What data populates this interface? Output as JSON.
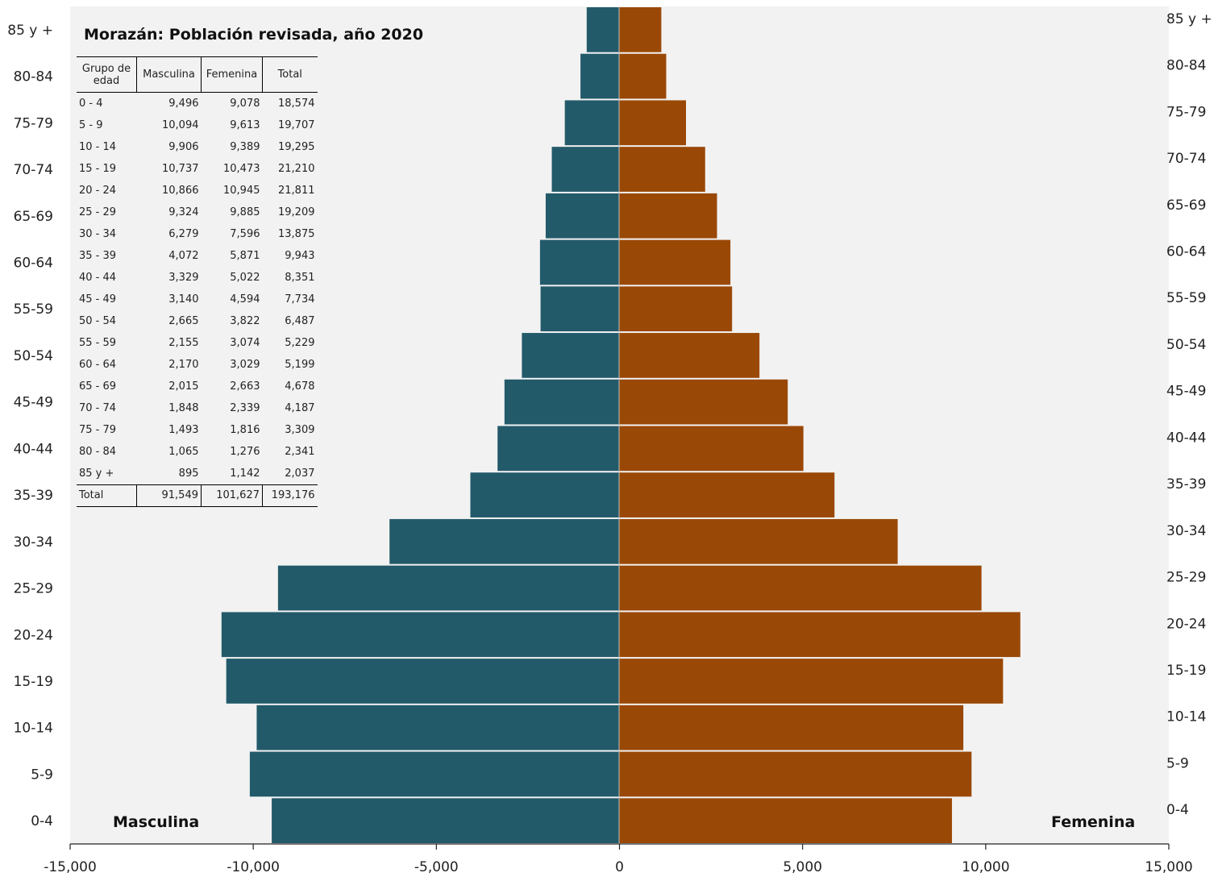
{
  "chart_data": {
    "type": "bar",
    "orientation": "horizontal-pyramid",
    "title": "Morazán: Población revisada, año 2020",
    "categories": [
      "0-4",
      "5-9",
      "10-14",
      "15-19",
      "20-24",
      "25-29",
      "30-34",
      "35-39",
      "40-44",
      "45-49",
      "50-54",
      "55-59",
      "60-64",
      "65-69",
      "70-74",
      "75-79",
      "80-84",
      "85 y +"
    ],
    "series": [
      {
        "name": "Masculina",
        "color": "#235a6a",
        "values": [
          -9496,
          -10094,
          -9906,
          -10737,
          -10866,
          -9324,
          -6279,
          -4072,
          -3329,
          -3140,
          -2665,
          -2155,
          -2170,
          -2015,
          -1848,
          -1493,
          -1065,
          -895
        ]
      },
      {
        "name": "Femenina",
        "color": "#9a4806",
        "values": [
          9078,
          9613,
          9389,
          10473,
          10945,
          9885,
          7596,
          5871,
          5022,
          4594,
          3822,
          3074,
          3029,
          2663,
          2339,
          1816,
          1276,
          1142
        ]
      }
    ],
    "xlim": [
      -15000,
      15000
    ],
    "xticks": [
      -15000,
      -10000,
      -5000,
      0,
      5000,
      10000,
      15000
    ],
    "xtick_labels": [
      "-15,000",
      "-10,000",
      "-5,000",
      "0",
      "5,000",
      "10,000",
      "15,000"
    ],
    "grid": false,
    "plot_background": "#f2f2f2"
  },
  "labels": {
    "male": "Masculina",
    "female": "Femenina"
  },
  "table": {
    "headers": [
      "Grupo de edad",
      "Masculina",
      "Femenina",
      "Total"
    ],
    "rows": [
      [
        "0 - 4",
        "9,496",
        "9,078",
        "18,574"
      ],
      [
        "5 - 9",
        "10,094",
        "9,613",
        "19,707"
      ],
      [
        "10 - 14",
        "9,906",
        "9,389",
        "19,295"
      ],
      [
        "15 - 19",
        "10,737",
        "10,473",
        "21,210"
      ],
      [
        "20 - 24",
        "10,866",
        "10,945",
        "21,811"
      ],
      [
        "25 - 29",
        "9,324",
        "9,885",
        "19,209"
      ],
      [
        "30 - 34",
        "6,279",
        "7,596",
        "13,875"
      ],
      [
        "35 - 39",
        "4,072",
        "5,871",
        "9,943"
      ],
      [
        "40 - 44",
        "3,329",
        "5,022",
        "8,351"
      ],
      [
        "45 - 49",
        "3,140",
        "4,594",
        "7,734"
      ],
      [
        "50 - 54",
        "2,665",
        "3,822",
        "6,487"
      ],
      [
        "55 - 59",
        "2,155",
        "3,074",
        "5,229"
      ],
      [
        "60 - 64",
        "2,170",
        "3,029",
        "5,199"
      ],
      [
        "65 - 69",
        "2,015",
        "2,663",
        "4,678"
      ],
      [
        "70 - 74",
        "1,848",
        "2,339",
        "4,187"
      ],
      [
        "75 - 79",
        "1,493",
        "1,816",
        "3,309"
      ],
      [
        "80 - 84",
        "1,065",
        "1,276",
        "2,341"
      ],
      [
        "85 y +",
        "895",
        "1,142",
        "2,037"
      ]
    ],
    "total": [
      "Total",
      "91,549",
      "101,627",
      "193,176"
    ]
  }
}
